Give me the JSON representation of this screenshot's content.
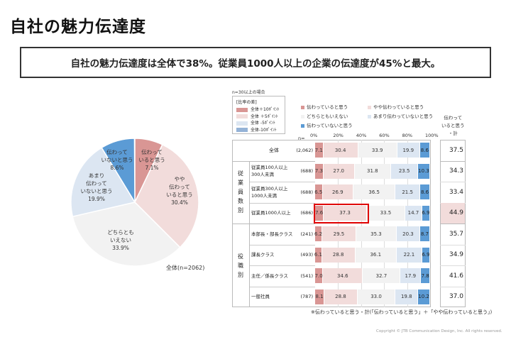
{
  "title": "自社の魅力伝達度",
  "headline": "自社の魅力伝達度は全体で38%。従業員1000人以上の企業の伝達度が45%と最大。",
  "colors": [
    "#d99694",
    "#f2dcdb",
    "#f2f2f2",
    "#dce6f2",
    "#5b9bd5"
  ],
  "pie": {
    "caption": "全体(n=2062)",
    "slices": [
      {
        "label": "伝わって\nいると思う",
        "value": 7.1,
        "text": "7.1%"
      },
      {
        "label": "やや\n伝わって\nいると思う",
        "value": 30.4,
        "text": "30.4%"
      },
      {
        "label": "どちらとも\nいえない",
        "value": 33.9,
        "text": "33.9%"
      },
      {
        "label": "あまり\n伝わって\nいないと思う",
        "value": 19.9,
        "text": "19.9%"
      },
      {
        "label": "伝わって\nいないと思う",
        "value": 8.6,
        "text": "8.6%"
      }
    ]
  },
  "note_n30": "n=30以上の場合",
  "diff_legend": {
    "title": "[比率の差]",
    "items": [
      {
        "label": "全体＋10ﾎﾟｲﾝﾄ",
        "color": "#d99694"
      },
      {
        "label": "全体 ＋5ﾎﾟｲﾝﾄ",
        "color": "#f2dcdb"
      },
      {
        "label": "全体 -5ﾎﾟｲﾝﾄ",
        "color": "#dce6f2"
      },
      {
        "label": "全体-10ﾎﾟｲﾝﾄ",
        "color": "#95b3d7"
      }
    ]
  },
  "chart_data": {
    "type": "bar",
    "stacked": true,
    "orientation": "horizontal",
    "xlim": [
      0,
      100
    ],
    "xticks": [
      "0%",
      "20%",
      "40%",
      "60%",
      "80%",
      "100%"
    ],
    "n_label": "n=",
    "legend": [
      "伝わっていると思う",
      "やや伝わっていると思う",
      "どちらともいえない",
      "あまり伝わっていないと思う",
      "伝わっていないと思う"
    ],
    "total_header": "伝わって\nいると思う\n・計",
    "groups": [
      {
        "label": "",
        "rows": [
          0
        ]
      },
      {
        "label": "従\n業\n員\n数\n別",
        "rows": [
          1,
          2,
          3
        ]
      },
      {
        "label": "役\n職\n別",
        "rows": [
          4,
          5,
          6,
          7
        ]
      }
    ],
    "rows": [
      {
        "label": "全体",
        "n": "(2,062)",
        "values": [
          7.1,
          30.4,
          33.9,
          19.9,
          8.6
        ],
        "total": "37.5"
      },
      {
        "label": "従業員100人以上\n300人未満",
        "n": "(688)",
        "values": [
          7.3,
          27.0,
          31.8,
          23.5,
          10.3
        ],
        "total": "34.3"
      },
      {
        "label": "従業員300人以上\n1000人未満",
        "n": "(688)",
        "values": [
          6.5,
          26.9,
          36.5,
          21.5,
          8.6
        ],
        "total": "33.4"
      },
      {
        "label": "従業員1000人以上",
        "n": "(686)",
        "values": [
          7.6,
          37.3,
          33.5,
          14.7,
          6.9
        ],
        "total": "44.9",
        "highlight": true
      },
      {
        "label": "本部長・部長クラス",
        "n": "(241)",
        "values": [
          6.2,
          29.5,
          35.3,
          20.3,
          8.7
        ],
        "total": "35.7"
      },
      {
        "label": "課長クラス",
        "n": "(493)",
        "values": [
          6.1,
          28.8,
          36.1,
          22.1,
          6.9
        ],
        "total": "34.9"
      },
      {
        "label": "主任／係長クラス",
        "n": "(541)",
        "values": [
          7.0,
          34.6,
          32.7,
          17.9,
          7.8
        ],
        "total": "41.6"
      },
      {
        "label": "一般社員",
        "n": "(787)",
        "values": [
          8.1,
          28.8,
          33.0,
          19.8,
          10.2
        ],
        "total": "37.0"
      }
    ],
    "footnote": "※伝わっていると思う・計(「伝わっていると思う」＋「やや伝わっていると思う」)"
  },
  "copyright": "Copyright © JTB Communication Design, Inc. All rights reserved."
}
